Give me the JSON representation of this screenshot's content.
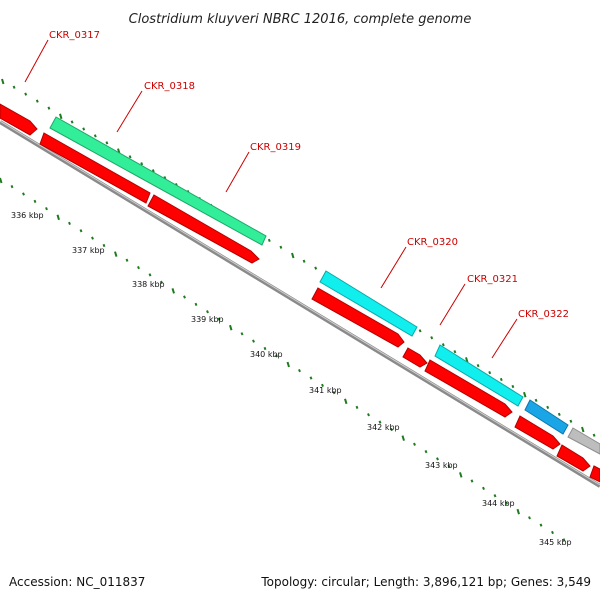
{
  "title": "Clostridium kluyveri NBRC 12016, complete genome",
  "accession": "Accession: NC_011837",
  "topology": "Topology: circular; Length: 3,896,121 bp; Genes: 3,549",
  "colors": {
    "background": "#ffffff",
    "backbone": "#8a8a8a",
    "tick": "#1f7a1f",
    "label_red": "#cc0000",
    "cds_red": "#ff0000",
    "cds_green": "#33ee99",
    "cds_cyan": "#11eeee",
    "cds_blue": "#1aa6e6",
    "cds_gray": "#bdbdbd"
  },
  "genes": [
    {
      "id": "CKR_0317"
    },
    {
      "id": "CKR_0318"
    },
    {
      "id": "CKR_0319"
    },
    {
      "id": "CKR_0320"
    },
    {
      "id": "CKR_0321"
    },
    {
      "id": "CKR_0322"
    }
  ],
  "kbp_labels": [
    "336 kbp",
    "337 kbp",
    "338 kbp",
    "339 kbp",
    "340 kbp",
    "341 kbp",
    "342 kbp",
    "343 kbp",
    "344 kbp",
    "345 kbp"
  ]
}
